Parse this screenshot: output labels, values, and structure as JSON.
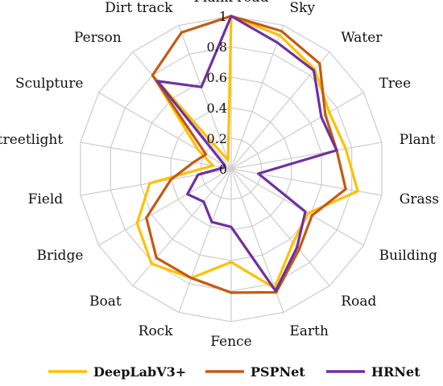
{
  "chart_data": {
    "type": "radar",
    "categories": [
      "Sky",
      "Water",
      "Tree",
      "Plant",
      "Grass",
      "Building",
      "Road",
      "Earth",
      "Fence",
      "Rock",
      "Boat",
      "Bridge",
      "Field",
      "Streetlight",
      "Sculpture",
      "Person",
      "Dirt track",
      "Plank road"
    ],
    "ticks": [
      "0",
      "0.2",
      "0.4",
      "0.6",
      "0.8",
      "1"
    ],
    "range": [
      0,
      1
    ],
    "grid": true,
    "legend_position": "bottom",
    "series": [
      {
        "name": "DeepLabV3+",
        "color": "#FFC000",
        "values": [
          0.93,
          0.85,
          0.74,
          0.76,
          0.84,
          0.58,
          0.63,
          0.83,
          0.61,
          0.76,
          0.81,
          0.71,
          0.54,
          0.12,
          0.25,
          0.79,
          0.06,
          1.0
        ]
      },
      {
        "name": "PSPNet",
        "color": "#C55A11",
        "values": [
          0.96,
          0.9,
          0.71,
          0.7,
          0.76,
          0.61,
          0.69,
          0.86,
          0.81,
          0.76,
          0.76,
          0.64,
          0.4,
          0.25,
          0.19,
          0.8,
          0.95,
          1.0
        ]
      },
      {
        "name": "HRNet",
        "color": "#7030A0",
        "values": [
          0.88,
          0.84,
          0.68,
          0.7,
          0.18,
          0.56,
          0.67,
          0.85,
          0.38,
          0.37,
          0.28,
          0.33,
          0.22,
          0.05,
          0.05,
          0.75,
          0.57,
          1.0
        ]
      }
    ]
  }
}
